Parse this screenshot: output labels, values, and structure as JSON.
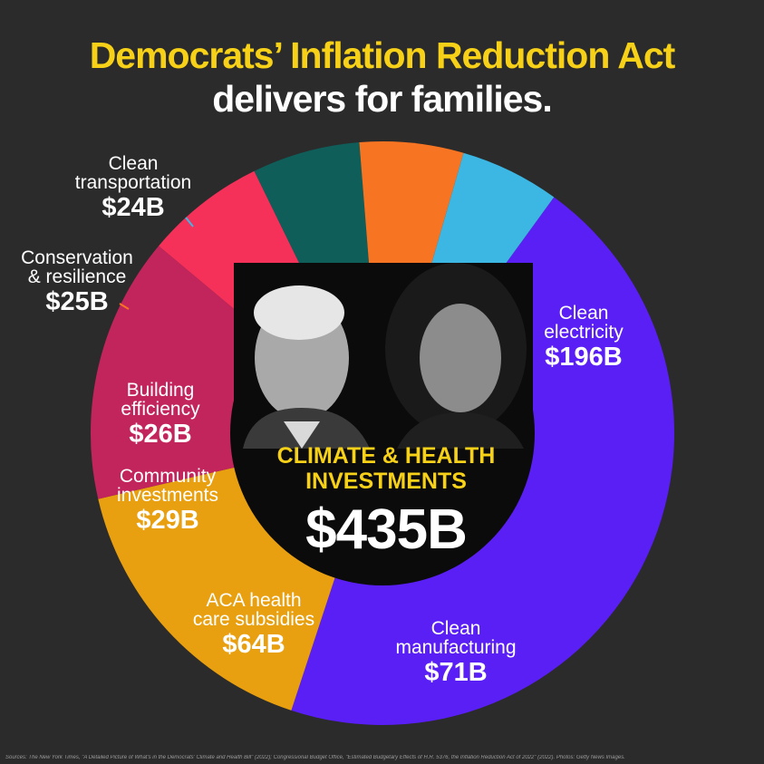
{
  "title_line1": "Democrats’ Inflation Reduction Act",
  "title_line2": "delivers for families.",
  "chart_data": {
    "type": "pie",
    "donut": true,
    "total_label": "CLIMATE & HEALTH INVESTMENTS",
    "total_value": "$435B",
    "slices": [
      {
        "name": "Clean electricity",
        "value": 196,
        "label": "$196B",
        "color": "#5a1ff5"
      },
      {
        "name": "Clean manufacturing",
        "value": 71,
        "label": "$71B",
        "color": "#e8a010"
      },
      {
        "name": "ACA health care subsidies",
        "value": 64,
        "label": "$64B",
        "color": "#c2245c"
      },
      {
        "name": "Community investments",
        "value": 29,
        "label": "$29B",
        "color": "#f5315a"
      },
      {
        "name": "Building efficiency",
        "value": 26,
        "label": "$26B",
        "color": "#0f5e5a"
      },
      {
        "name": "Conservation & resilience",
        "value": 25,
        "label": "$25B",
        "color": "#f77422"
      },
      {
        "name": "Clean transportation",
        "value": 24,
        "label": "$24B",
        "color": "#3cb7e3"
      }
    ]
  },
  "labels": {
    "clean_electricity": {
      "line1": "Clean",
      "line2": "electricity",
      "value": "$196B"
    },
    "clean_manufacturing": {
      "line1": "Clean",
      "line2": "manufacturing",
      "value": "$71B"
    },
    "aca": {
      "line1": "ACA health",
      "line2": "care subsidies",
      "value": "$64B"
    },
    "community": {
      "line1": "Community",
      "line2": "investments",
      "value": "$29B"
    },
    "building": {
      "line1": "Building",
      "line2": "efficiency",
      "value": "$26B"
    },
    "conservation": {
      "line1": "Conservation",
      "line2": "& resilience",
      "value": "$25B"
    },
    "transportation": {
      "line1": "Clean",
      "line2": "transportation",
      "value": "$24B"
    }
  },
  "source_text": "Sources: The New York Times, \"A Detailed Picture of What's in the Democrats' Climate and Health Bill\" (2022); Congressional Budget Office, \"Estimated Budgetary Effects of H.R. 5376, the Inflation Reduction Act of 2022\" (2022). Photos: Getty News Images."
}
